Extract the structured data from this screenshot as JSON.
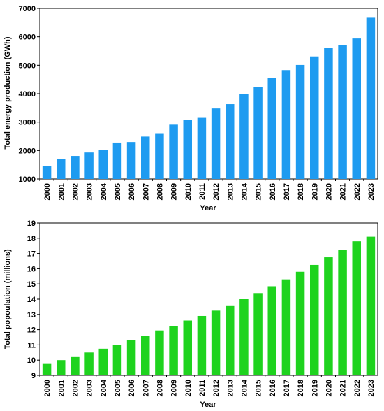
{
  "chart_data": [
    {
      "type": "bar",
      "title": "",
      "xlabel": "Year",
      "ylabel": "Total energy production (GWh)",
      "categories": [
        "2000",
        "2001",
        "2002",
        "2003",
        "2004",
        "2005",
        "2006",
        "2007",
        "2008",
        "2009",
        "2010",
        "2011",
        "2012",
        "2013",
        "2014",
        "2015",
        "2016",
        "2017",
        "2018",
        "2019",
        "2020",
        "2021",
        "2022",
        "2023"
      ],
      "values": [
        1460,
        1700,
        1810,
        1930,
        2020,
        2280,
        2300,
        2490,
        2610,
        2910,
        3090,
        3150,
        3480,
        3630,
        3980,
        4240,
        4560,
        4830,
        5010,
        5310,
        5610,
        5720,
        5940,
        6670
      ],
      "ylim": [
        1000,
        7000
      ],
      "yticks": [
        1000,
        2000,
        3000,
        4000,
        5000,
        6000,
        7000
      ],
      "color": "#1E9BF0",
      "grid": false
    },
    {
      "type": "bar",
      "title": "",
      "xlabel": "Year",
      "ylabel": "Total popoulation (millions)",
      "categories": [
        "2000",
        "2001",
        "2002",
        "2003",
        "2004",
        "2005",
        "2006",
        "2007",
        "2008",
        "2009",
        "2010",
        "2011",
        "2012",
        "2013",
        "2014",
        "2015",
        "2016",
        "2017",
        "2018",
        "2019",
        "2020",
        "2021",
        "2022",
        "2023"
      ],
      "values": [
        9.75,
        10.0,
        10.2,
        10.5,
        10.75,
        11.0,
        11.3,
        11.6,
        11.95,
        12.25,
        12.6,
        12.9,
        13.25,
        13.55,
        14.0,
        14.4,
        14.85,
        15.3,
        15.8,
        16.25,
        16.75,
        17.25,
        17.8,
        18.1
      ],
      "ylim": [
        9,
        19
      ],
      "yticks": [
        9,
        10,
        11,
        12,
        13,
        14,
        15,
        16,
        17,
        18,
        19
      ],
      "color": "#1ED31E",
      "grid": false
    }
  ]
}
